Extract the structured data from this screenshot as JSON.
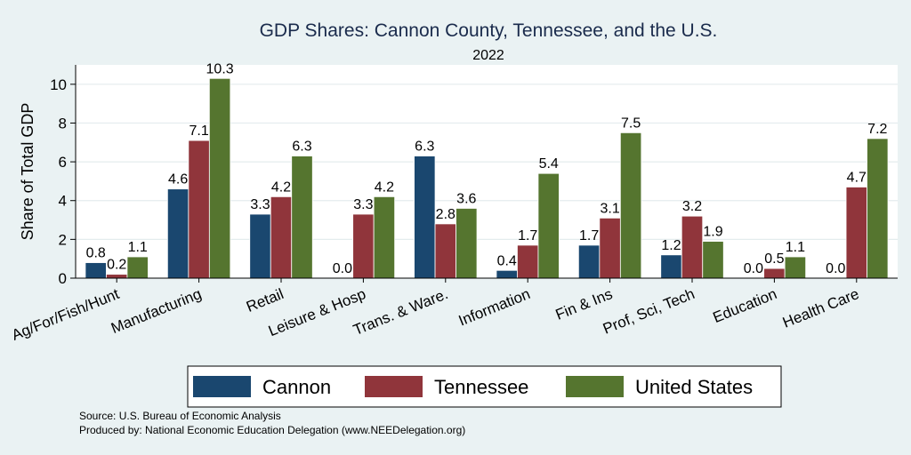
{
  "chart_data": {
    "type": "bar",
    "title": "GDP Shares: Cannon County, Tennessee, and the U.S.",
    "subtitle": "2022",
    "ylabel": "Share of Total GDP",
    "xlabel": "",
    "ylim": [
      0,
      11
    ],
    "yticks": [
      0,
      2,
      4,
      6,
      8,
      10
    ],
    "grid": true,
    "legend_position": "bottom",
    "categories": [
      "Ag/For/Fish/Hunt",
      "Manufacturing",
      "Retail",
      "Leisure & Hosp",
      "Trans. & Ware.",
      "Information",
      "Fin & Ins",
      "Prof, Sci, Tech",
      "Education",
      "Health Care"
    ],
    "series": [
      {
        "name": "Cannon",
        "color": "#1a476f",
        "values": [
          0.8,
          4.6,
          3.3,
          0.0,
          6.3,
          0.4,
          1.7,
          1.2,
          0.0,
          0.0
        ],
        "labels": [
          "0.8",
          "4.6",
          "3.3",
          "0.0",
          "6.3",
          "0.4",
          "1.7",
          "1.2",
          "0.0",
          "0.0"
        ]
      },
      {
        "name": "Tennessee",
        "color": "#90353b",
        "values": [
          0.2,
          7.1,
          4.2,
          3.3,
          2.8,
          1.7,
          3.1,
          3.2,
          0.5,
          4.7
        ],
        "labels": [
          "0.2",
          "7.1",
          "4.2",
          "3.3",
          "2.8",
          "1.7",
          "3.1",
          "3.2",
          "0.5",
          "4.7"
        ]
      },
      {
        "name": "United States",
        "color": "#55752f",
        "values": [
          1.1,
          10.3,
          6.3,
          4.2,
          3.6,
          5.4,
          7.5,
          1.9,
          1.1,
          7.2
        ],
        "labels": [
          "1.1",
          "10.3",
          "6.3",
          "4.2",
          "3.6",
          "5.4",
          "7.5",
          "1.9",
          "1.1",
          "7.2"
        ]
      }
    ]
  },
  "notes": {
    "source": "Source: U.S. Bureau of Economic Analysis",
    "produced_by": "Produced by: National Economic Education Delegation (www.NEEDelegation.org)"
  }
}
